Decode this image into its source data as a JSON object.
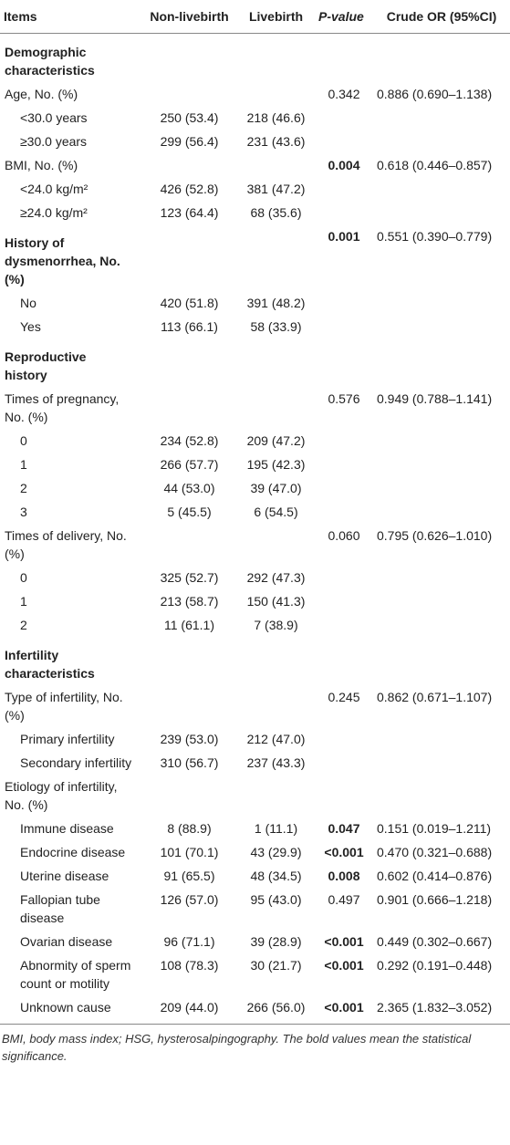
{
  "table": {
    "header": [
      "Items",
      "Non-livebirth",
      "Livebirth",
      "P-value",
      "Crude OR (95%CI)"
    ],
    "rows": [
      {
        "item": "Demographic characteristics"
      },
      {
        "item": "Age, No. (%)",
        "p_value": "0.342",
        "crude_or": "0.886 (0.690–1.138)"
      },
      {
        "item": "<30.0 years",
        "non_livebirth": "250 (53.4)",
        "livebirth": "218 (46.6)"
      },
      {
        "item": "≥30.0 years",
        "non_livebirth": "299 (56.4)",
        "livebirth": "231 (43.6)"
      },
      {
        "item": "BMI, No. (%)",
        "p_value": "0.004",
        "crude_or": "0.618 (0.446–0.857)"
      },
      {
        "item": "<24.0 kg/m²",
        "non_livebirth": "426 (52.8)",
        "livebirth": "381 (47.2)"
      },
      {
        "item": "≥24.0 kg/m²",
        "non_livebirth": "123 (64.4)",
        "livebirth": "68 (35.6)"
      },
      {
        "item": "History of dysmenorrhea, No. (%)",
        "p_value": "0.001",
        "crude_or": "0.551 (0.390–0.779)"
      },
      {
        "item": "No",
        "non_livebirth": "420 (51.8)",
        "livebirth": "391 (48.2)"
      },
      {
        "item": "Yes",
        "non_livebirth": "113 (66.1)",
        "livebirth": "58 (33.9)"
      },
      {
        "item": "Reproductive history"
      },
      {
        "item": "Times of pregnancy, No. (%)",
        "p_value": "0.576",
        "crude_or": "0.949 (0.788–1.141)"
      },
      {
        "item": "0",
        "non_livebirth": "234 (52.8)",
        "livebirth": "209 (47.2)"
      },
      {
        "item": "1",
        "non_livebirth": "266 (57.7)",
        "livebirth": "195 (42.3)"
      },
      {
        "item": "2",
        "non_livebirth": "44 (53.0)",
        "livebirth": "39 (47.0)"
      },
      {
        "item": "3",
        "non_livebirth": "5 (45.5)",
        "livebirth": "6 (54.5)"
      },
      {
        "item": "Times of delivery, No. (%)",
        "p_value": "0.060",
        "crude_or": "0.795 (0.626–1.010)"
      },
      {
        "item": "0",
        "non_livebirth": "325 (52.7)",
        "livebirth": "292 (47.3)"
      },
      {
        "item": "1",
        "non_livebirth": "213 (58.7)",
        "livebirth": "150 (41.3)"
      },
      {
        "item": "2",
        "non_livebirth": "11 (61.1)",
        "livebirth": "7 (38.9)"
      },
      {
        "item": "Infertility characteristics"
      },
      {
        "item": "Type of infertility, No. (%)",
        "p_value": "0.245",
        "crude_or": "0.862 (0.671–1.107)"
      },
      {
        "item": "Primary infertility",
        "non_livebirth": "239 (53.0)",
        "livebirth": "212 (47.0)"
      },
      {
        "item": "Secondary infertility",
        "non_livebirth": "310 (56.7)",
        "livebirth": "237 (43.3)"
      },
      {
        "item": "Etiology of infertility, No. (%)"
      },
      {
        "item": "Immune disease",
        "non_livebirth": "8 (88.9)",
        "livebirth": "1 (11.1)",
        "p_value": "0.047",
        "crude_or": "0.151 (0.019–1.211)"
      },
      {
        "item": "Endocrine disease",
        "non_livebirth": "101 (70.1)",
        "livebirth": "43 (29.9)",
        "p_value": "<0.001",
        "crude_or": "0.470 (0.321–0.688)"
      },
      {
        "item": "Uterine disease",
        "non_livebirth": "91 (65.5)",
        "livebirth": "48 (34.5)",
        "p_value": "0.008",
        "crude_or": "0.602 (0.414–0.876)"
      },
      {
        "item": "Fallopian tube disease",
        "non_livebirth": "126 (57.0)",
        "livebirth": "95 (43.0)",
        "p_value": "0.497",
        "crude_or": "0.901 (0.666–1.218)"
      },
      {
        "item": "Ovarian disease",
        "non_livebirth": "96 (71.1)",
        "livebirth": "39 (28.9)",
        "p_value": "<0.001",
        "crude_or": "0.449 (0.302–0.667)"
      },
      {
        "item": "Abnormity of sperm count or motility",
        "non_livebirth": "108 (78.3)",
        "livebirth": "30 (21.7)",
        "p_value": "<0.001",
        "crude_or": "0.292 (0.191–0.448)"
      },
      {
        "item": "Unknown cause",
        "non_livebirth": "209 (44.0)",
        "livebirth": "266 (56.0)",
        "p_value": "<0.001",
        "crude_or": "2.365 (1.832–3.052)"
      }
    ],
    "footnote": "BMI, body mass index; HSG, hysterosalpingography. The bold values mean the statistical significance."
  }
}
